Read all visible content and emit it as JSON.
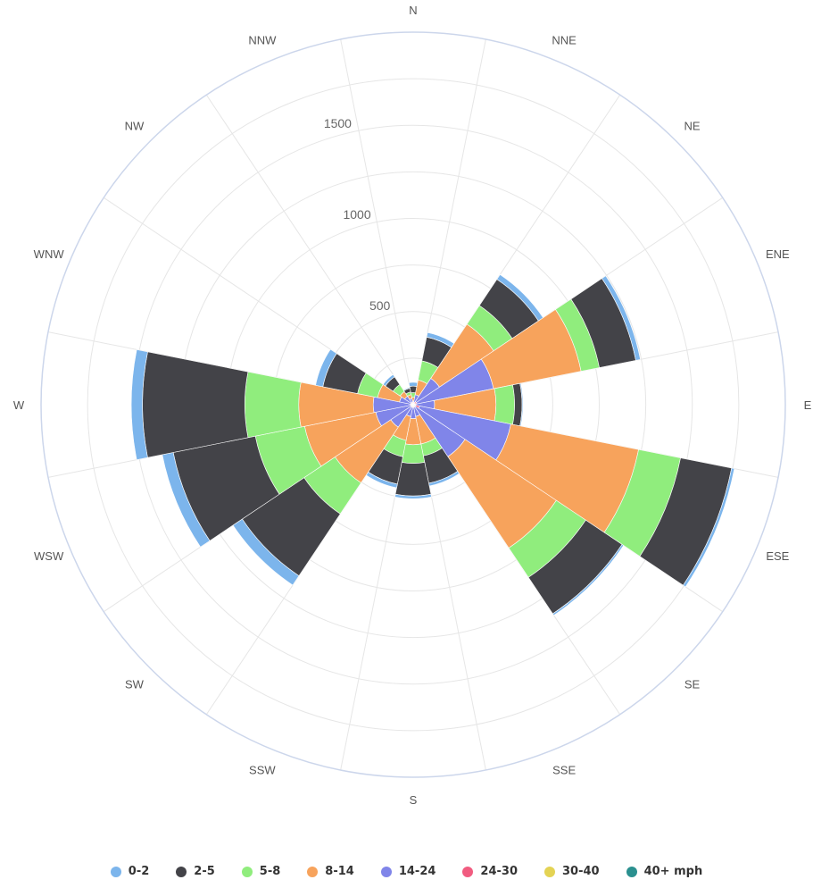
{
  "chart_data": {
    "type": "wind-rose",
    "title": "",
    "directions": [
      "N",
      "NNE",
      "NE",
      "ENE",
      "E",
      "ESE",
      "SE",
      "SSE",
      "S",
      "SSW",
      "SW",
      "WSW",
      "W",
      "WNW",
      "NW",
      "NNW"
    ],
    "radial_ticks": [
      "500",
      "1000",
      "1500"
    ],
    "radial_max": 2000,
    "series": [
      {
        "name": "0-2",
        "color": "#7cb5ec",
        "values": [
          20,
          25,
          30,
          25,
          5,
          15,
          10,
          15,
          15,
          20,
          60,
          60,
          60,
          40,
          15,
          5
        ]
      },
      {
        "name": "2-5",
        "color": "#434348",
        "values": [
          35,
          130,
          170,
          200,
          40,
          280,
          235,
          150,
          175,
          150,
          400,
          450,
          550,
          190,
          50,
          20
        ]
      },
      {
        "name": "5-8",
        "color": "#90ed7d",
        "values": [
          25,
          105,
          120,
          100,
          100,
          230,
          190,
          65,
          100,
          90,
          200,
          270,
          290,
          110,
          45,
          15
        ]
      },
      {
        "name": "8-14",
        "color": "#f7a35c",
        "values": [
          20,
          80,
          350,
          480,
          330,
          700,
          590,
          150,
          140,
          130,
          360,
          390,
          400,
          120,
          30,
          20
        ]
      },
      {
        "name": "14-24",
        "color": "#8085e9",
        "values": [
          5,
          40,
          150,
          420,
          100,
          500,
          320,
          50,
          60,
          50,
          130,
          190,
          200,
          60,
          40,
          20
        ]
      },
      {
        "name": "24-30",
        "color": "#f15c80",
        "values": [
          5,
          5,
          10,
          10,
          5,
          20,
          5,
          5,
          5,
          5,
          5,
          5,
          5,
          5,
          5,
          5
        ]
      },
      {
        "name": "30-40",
        "color": "#e4d354",
        "values": [
          5,
          5,
          5,
          5,
          5,
          10,
          5,
          5,
          5,
          5,
          5,
          5,
          5,
          5,
          5,
          5
        ]
      },
      {
        "name": "40+ mph",
        "color": "#2b908f",
        "values": [
          5,
          5,
          5,
          5,
          5,
          5,
          5,
          5,
          5,
          5,
          5,
          5,
          5,
          5,
          5,
          5
        ]
      }
    ],
    "legend_position": "bottom-center",
    "grid": true
  },
  "legend": {
    "items": [
      {
        "label": "0-2",
        "color": "#7cb5ec"
      },
      {
        "label": "2-5",
        "color": "#434348"
      },
      {
        "label": "5-8",
        "color": "#90ed7d"
      },
      {
        "label": "8-14",
        "color": "#f7a35c"
      },
      {
        "label": "14-24",
        "color": "#8085e9"
      },
      {
        "label": "24-30",
        "color": "#f15c80"
      },
      {
        "label": "30-40",
        "color": "#e4d354"
      },
      {
        "label": "40+ mph",
        "color": "#2b908f"
      }
    ]
  }
}
